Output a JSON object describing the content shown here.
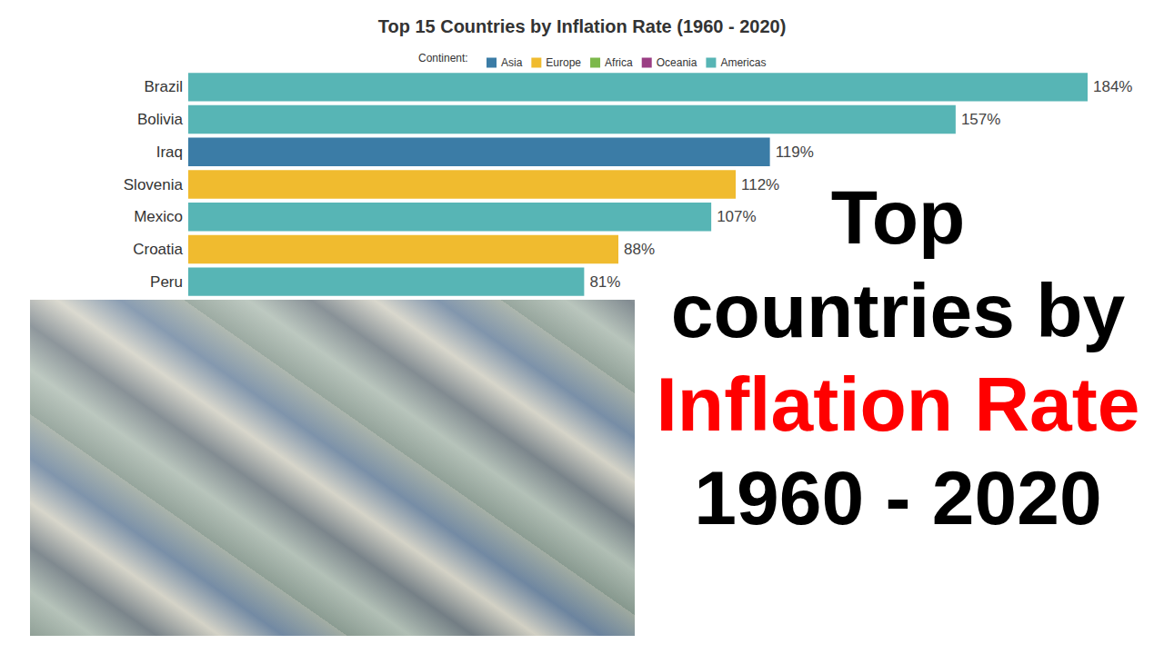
{
  "chart_data": {
    "type": "bar",
    "title": "Top 15 Countries by Inflation Rate (1960 - 2020)",
    "orientation": "horizontal",
    "categories": [
      "Brazil",
      "Bolivia",
      "Iraq",
      "Slovenia",
      "Mexico",
      "Croatia",
      "Peru"
    ],
    "legend_title": "Continent:",
    "legend": "top",
    "data_labels": true,
    "tick_labels": "y",
    "grid": false,
    "xlim": [
      0,
      184
    ],
    "series": [
      {
        "name": "Asia",
        "color": "#3b7ca6",
        "values": [
          null,
          null,
          119,
          null,
          null,
          null,
          null
        ],
        "value_labels": [
          null,
          null,
          "119%",
          null,
          null,
          null,
          null
        ]
      },
      {
        "name": "Europe",
        "color": "#f0bb2f",
        "values": [
          null,
          null,
          null,
          112,
          null,
          88,
          null
        ],
        "value_labels": [
          null,
          null,
          null,
          "112%",
          null,
          "88%",
          null
        ]
      },
      {
        "name": "Africa",
        "color": "#7cb84b",
        "values": [
          null,
          null,
          null,
          null,
          null,
          null,
          null
        ],
        "value_labels": [
          null,
          null,
          null,
          null,
          null,
          null,
          null
        ]
      },
      {
        "name": "Oceania",
        "color": "#9b3e84",
        "values": [
          null,
          null,
          null,
          null,
          null,
          null,
          null
        ],
        "value_labels": [
          null,
          null,
          null,
          null,
          null,
          null,
          null
        ]
      },
      {
        "name": "Americas",
        "color": "#57b5b5",
        "values": [
          184,
          157,
          null,
          null,
          107,
          null,
          81
        ],
        "value_labels": [
          "184%",
          "157%",
          null,
          null,
          "107%",
          null,
          "81%"
        ]
      }
    ]
  },
  "headline": [
    {
      "text": "Top",
      "color": "#000000"
    },
    {
      "text": "countries by",
      "color": "#000000"
    },
    {
      "text": "Inflation Rate",
      "color": "#ff0000"
    },
    {
      "text": "1960 - 2020",
      "color": "#000000"
    }
  ]
}
